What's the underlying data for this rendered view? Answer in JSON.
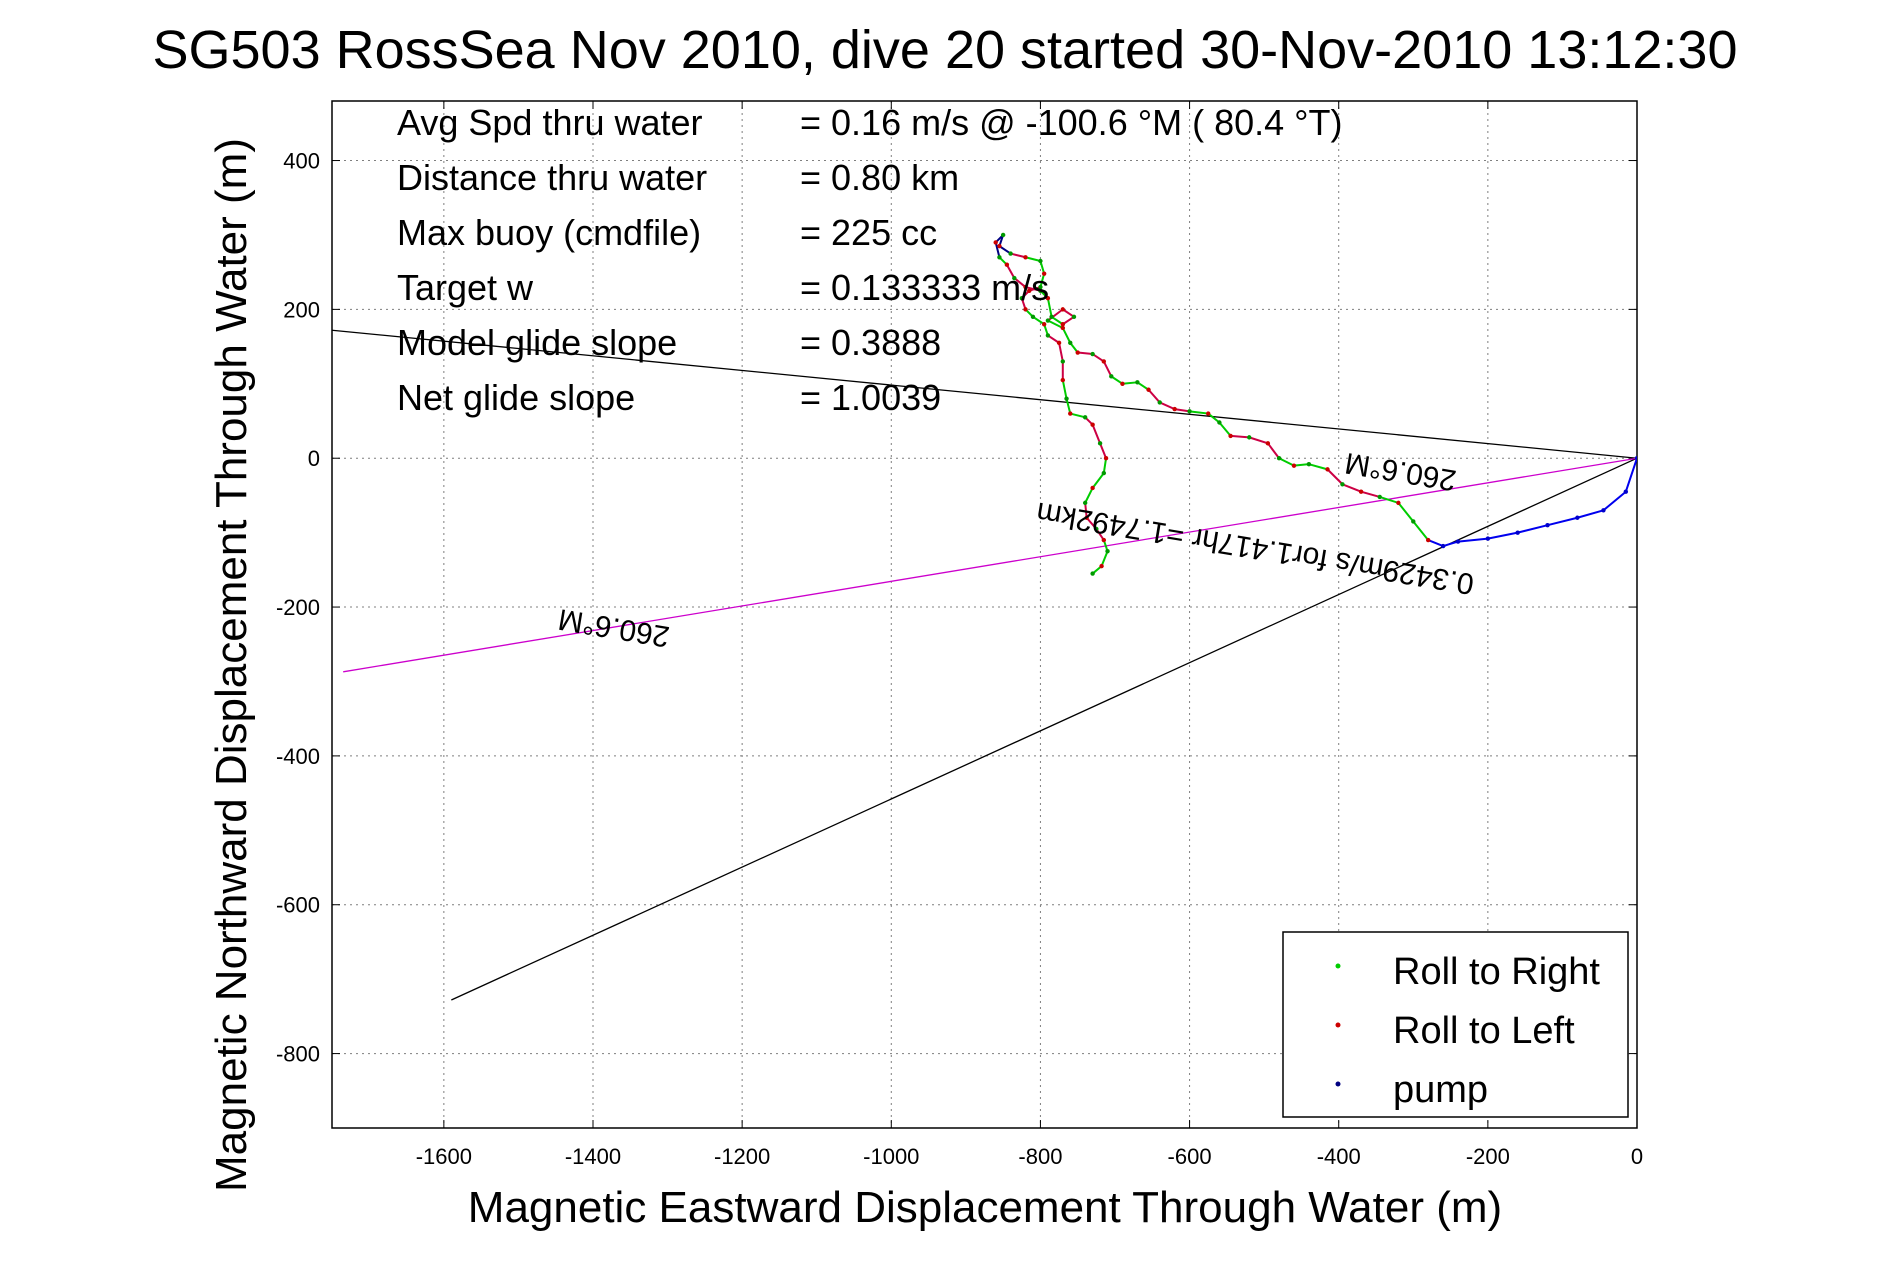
{
  "chart_data": {
    "type": "scatter",
    "title": "SG503 RossSea Nov 2010, dive 20 started 30-Nov-2010 13:12:30",
    "xlabel": "Magnetic Eastward Displacement Through Water (m)",
    "ylabel": "Magnetic Northward Displacement Through Water (m)",
    "xlim": [
      -1750,
      0
    ],
    "ylim": [
      -900,
      480
    ],
    "xticks": [
      -1600,
      -1400,
      -1200,
      -1000,
      -800,
      -600,
      -400,
      -200,
      0
    ],
    "yticks": [
      400,
      200,
      0,
      -200,
      -400,
      -600,
      -800
    ],
    "xtick_labels": [
      "-1600",
      "-1400",
      "-1200",
      "-1000",
      "-800",
      "-600",
      "-400",
      "-200",
      "0"
    ],
    "ytick_labels": [
      "400",
      "200",
      "0",
      "-200",
      "-400",
      "-600",
      "-800"
    ],
    "grid": true,
    "legend_position": "bottom-right",
    "legend": [
      {
        "label": "Roll to Right",
        "color": "#00cc00"
      },
      {
        "label": "Roll to Left",
        "color": "#cc0000"
      },
      {
        "label": "pump",
        "color": "#000080"
      }
    ],
    "info_rows": [
      {
        "label": "Avg Spd thru water",
        "value": "=  0.16 m/s @ -100.6 °M ( 80.4 °T)"
      },
      {
        "label": "Distance thru water",
        "value": "=  0.80 km"
      },
      {
        "label": "Max buoy (cmdfile)",
        "value": "= 225 cc"
      },
      {
        "label": "Target w",
        "value": "= 0.133333 m/s"
      },
      {
        "label": "Model glide slope",
        "value": "= 0.3888"
      },
      {
        "label": "Net glide slope",
        "value": "= 1.0039"
      }
    ],
    "lines": [
      {
        "name": "heading-line-a",
        "color": "#000000",
        "x": [
          0,
          -1750
        ],
        "y": [
          0,
          172
        ]
      },
      {
        "name": "heading-line-b",
        "color": "#000000",
        "x": [
          0,
          -1590
        ],
        "y": [
          0,
          -728
        ]
      },
      {
        "name": "current-line",
        "color": "#cc00cc",
        "x": [
          0,
          -1735
        ],
        "y": [
          0,
          -287
        ]
      }
    ],
    "line_labels": [
      {
        "text": "260.6°M",
        "x": -315,
        "y": -5,
        "rotation": 9.4
      },
      {
        "text": "0.3429m/s for1.417hr =1.7492km",
        "x": -510,
        "y": -108,
        "rotation": 9.4
      },
      {
        "text": "260.6°M",
        "x": -1370,
        "y": -215,
        "rotation": 9.4
      }
    ],
    "track": [
      [
        0,
        0
      ],
      [
        -15,
        -45
      ],
      [
        -45,
        -70
      ],
      [
        -80,
        -80
      ],
      [
        -120,
        -90
      ],
      [
        -160,
        -100
      ],
      [
        -200,
        -108
      ],
      [
        -240,
        -112
      ],
      [
        -260,
        -118
      ],
      [
        -280,
        -110
      ],
      [
        -300,
        -85
      ],
      [
        -320,
        -60
      ],
      [
        -345,
        -52
      ],
      [
        -370,
        -45
      ],
      [
        -395,
        -35
      ],
      [
        -415,
        -15
      ],
      [
        -440,
        -8
      ],
      [
        -460,
        -10
      ],
      [
        -480,
        0
      ],
      [
        -495,
        20
      ],
      [
        -520,
        28
      ],
      [
        -545,
        30
      ],
      [
        -560,
        48
      ],
      [
        -575,
        60
      ],
      [
        -600,
        63
      ],
      [
        -620,
        66
      ],
      [
        -640,
        75
      ],
      [
        -655,
        92
      ],
      [
        -670,
        102
      ],
      [
        -690,
        100
      ],
      [
        -705,
        110
      ],
      [
        -715,
        130
      ],
      [
        -730,
        140
      ],
      [
        -750,
        142
      ],
      [
        -760,
        155
      ],
      [
        -770,
        175
      ],
      [
        -790,
        185
      ],
      [
        -770,
        200
      ],
      [
        -755,
        190
      ],
      [
        -770,
        180
      ],
      [
        -785,
        190
      ],
      [
        -790,
        215
      ],
      [
        -800,
        225
      ],
      [
        -820,
        230
      ],
      [
        -835,
        242
      ],
      [
        -845,
        260
      ],
      [
        -855,
        270
      ],
      [
        -860,
        290
      ],
      [
        -850,
        300
      ],
      [
        -855,
        285
      ],
      [
        -840,
        275
      ],
      [
        -820,
        270
      ],
      [
        -800,
        265
      ],
      [
        -795,
        248
      ],
      [
        -800,
        230
      ],
      [
        -815,
        225
      ],
      [
        -825,
        215
      ],
      [
        -820,
        200
      ],
      [
        -810,
        190
      ],
      [
        -795,
        180
      ],
      [
        -790,
        165
      ],
      [
        -775,
        155
      ],
      [
        -770,
        130
      ],
      [
        -770,
        105
      ],
      [
        -765,
        80
      ],
      [
        -760,
        60
      ],
      [
        -740,
        55
      ],
      [
        -730,
        45
      ],
      [
        -720,
        20
      ],
      [
        -712,
        0
      ],
      [
        -715,
        -20
      ],
      [
        -730,
        -40
      ],
      [
        -740,
        -60
      ],
      [
        -738,
        -80
      ],
      [
        -725,
        -95
      ],
      [
        -715,
        -110
      ],
      [
        -710,
        -125
      ],
      [
        -718,
        -145
      ],
      [
        -730,
        -155
      ]
    ]
  }
}
